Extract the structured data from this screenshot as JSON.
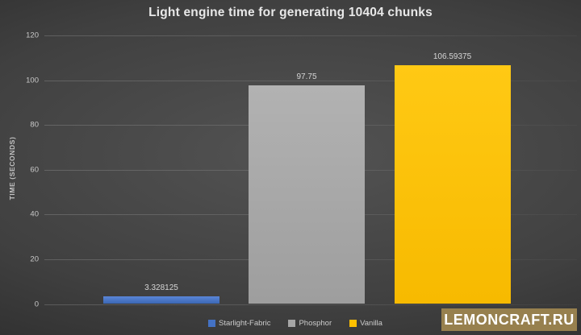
{
  "chart_data": {
    "type": "bar",
    "title": "Light engine time for generating 10404 chunks",
    "xlabel": "",
    "ylabel": "TIME (SECONDS)",
    "categories": [
      "Starlight-Fabric",
      "Phosphor",
      "Vanilla"
    ],
    "values": [
      3.328125,
      97.75,
      106.59375
    ],
    "value_labels": [
      "3.328125",
      "97.75",
      "106.59375"
    ],
    "ylim": [
      0,
      120
    ],
    "yticks": [
      0,
      20,
      40,
      60,
      80,
      100,
      120
    ],
    "grid": "horizontal",
    "legend_position": "bottom",
    "bar_colors": [
      "#4472c4",
      "#a6a6a6",
      "#ffc000"
    ],
    "bar_fills": [
      {
        "top": "#5a86d8",
        "bottom": "#3c67b4"
      },
      {
        "top": "#b2b2b2",
        "bottom": "#9e9e9e"
      },
      {
        "top": "#ffc914",
        "bottom": "#f7ba00"
      }
    ],
    "background_dark": "#262626",
    "background_light": "#535353"
  },
  "legend": {
    "items": [
      {
        "label": "Starlight-Fabric",
        "color": "#4472c4"
      },
      {
        "label": "Phosphor",
        "color": "#a6a6a6"
      },
      {
        "label": "Vanilla",
        "color": "#ffc000"
      }
    ]
  },
  "watermark": {
    "text": "LEMONCRAFT.RU",
    "bg_color": "#97804e",
    "text_color": "#ffffff"
  }
}
